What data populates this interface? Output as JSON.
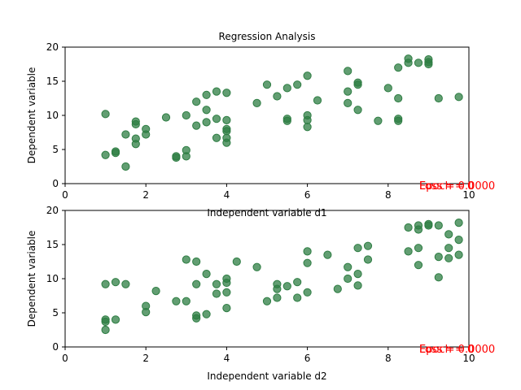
{
  "chart_data": [
    {
      "type": "scatter",
      "title": "Regression Analysis",
      "xlabel": "Independent variable d1",
      "ylabel": "Dependent variable",
      "xlim": [
        0,
        10
      ],
      "ylim": [
        0,
        20
      ],
      "xticks": [
        "0",
        "2",
        "4",
        "6",
        "8",
        "10"
      ],
      "yticks": [
        "0",
        "5",
        "10",
        "15",
        "20"
      ],
      "grid": false,
      "marker_color": "#2e7d43",
      "overlay_text_color": "#ff0000",
      "overlay_texts": [
        "Epoch = 0",
        "Loss = 0.0000"
      ],
      "x": [
        1.0,
        1.0,
        1.25,
        1.25,
        1.5,
        1.5,
        1.75,
        1.75,
        1.75,
        1.75,
        2.0,
        2.0,
        2.5,
        2.75,
        2.75,
        3.0,
        3.0,
        3.0,
        3.25,
        3.25,
        3.5,
        3.5,
        3.5,
        3.75,
        3.75,
        3.75,
        4.0,
        4.0,
        4.0,
        4.0,
        4.0,
        4.0,
        4.75,
        5.0,
        5.25,
        5.5,
        5.5,
        5.5,
        5.75,
        6.0,
        6.0,
        6.0,
        6.0,
        6.25,
        7.0,
        7.0,
        7.0,
        7.25,
        7.25,
        7.25,
        7.75,
        8.0,
        8.25,
        8.25,
        8.25,
        8.25,
        8.5,
        8.5,
        8.75,
        9.0,
        9.0,
        9.0,
        9.25,
        9.75
      ],
      "y": [
        10.2,
        4.2,
        4.5,
        4.7,
        2.5,
        7.2,
        5.8,
        6.6,
        8.7,
        9.1,
        7.2,
        8.0,
        9.7,
        3.8,
        4.0,
        4.0,
        4.9,
        10.0,
        8.5,
        12.0,
        9.0,
        10.8,
        13.0,
        6.7,
        9.5,
        13.5,
        6.0,
        6.7,
        7.7,
        8.0,
        9.3,
        13.3,
        11.8,
        14.5,
        12.8,
        9.2,
        9.5,
        14.0,
        14.5,
        8.3,
        9.3,
        10.0,
        15.8,
        12.2,
        11.8,
        13.5,
        16.5,
        10.8,
        14.5,
        14.8,
        9.2,
        14.0,
        9.2,
        9.5,
        12.5,
        17.0,
        17.7,
        18.3,
        17.7,
        17.5,
        17.8,
        18.2,
        12.5,
        12.7
      ]
    },
    {
      "type": "scatter",
      "title": "",
      "xlabel": "Independent variable d2",
      "ylabel": "Dependent variable",
      "xlim": [
        0,
        10
      ],
      "ylim": [
        0,
        20
      ],
      "xticks": [
        "0",
        "2",
        "4",
        "6",
        "8",
        "10"
      ],
      "yticks": [
        "0",
        "5",
        "10",
        "15",
        "20"
      ],
      "grid": false,
      "marker_color": "#2e7d43",
      "overlay_text_color": "#ff0000",
      "overlay_texts": [
        "Epoch = 0",
        "Loss = 0.0000"
      ],
      "x": [
        1.0,
        1.0,
        1.0,
        1.0,
        1.25,
        1.25,
        1.5,
        2.0,
        2.0,
        2.25,
        2.75,
        3.0,
        3.0,
        3.25,
        3.25,
        3.25,
        3.25,
        3.5,
        3.5,
        3.75,
        3.75,
        4.0,
        4.0,
        4.0,
        4.0,
        4.25,
        4.75,
        5.0,
        5.25,
        5.25,
        5.25,
        5.5,
        5.75,
        5.75,
        6.0,
        6.0,
        6.0,
        6.5,
        6.75,
        7.0,
        7.0,
        7.25,
        7.25,
        7.25,
        7.5,
        7.5,
        8.5,
        8.5,
        8.75,
        8.75,
        8.75,
        8.75,
        9.0,
        9.0,
        9.25,
        9.25,
        9.25,
        9.5,
        9.5,
        9.5,
        9.75,
        9.75,
        9.75
      ],
      "y": [
        9.2,
        4.0,
        3.7,
        2.5,
        9.5,
        4.0,
        9.2,
        6.0,
        5.1,
        8.2,
        6.7,
        12.8,
        6.7,
        12.5,
        9.2,
        4.6,
        4.2,
        10.7,
        4.8,
        9.2,
        7.8,
        10.0,
        9.4,
        8.0,
        5.7,
        12.5,
        11.7,
        6.7,
        9.2,
        8.5,
        7.2,
        8.9,
        9.5,
        7.2,
        14.0,
        12.3,
        8.0,
        13.5,
        8.5,
        11.7,
        10.0,
        14.5,
        10.7,
        9.0,
        14.8,
        12.8,
        17.5,
        14.0,
        17.8,
        17.2,
        14.5,
        12.0,
        18.0,
        17.8,
        17.8,
        13.2,
        10.2,
        16.5,
        14.5,
        13.0,
        18.2,
        15.7,
        13.5
      ]
    }
  ]
}
